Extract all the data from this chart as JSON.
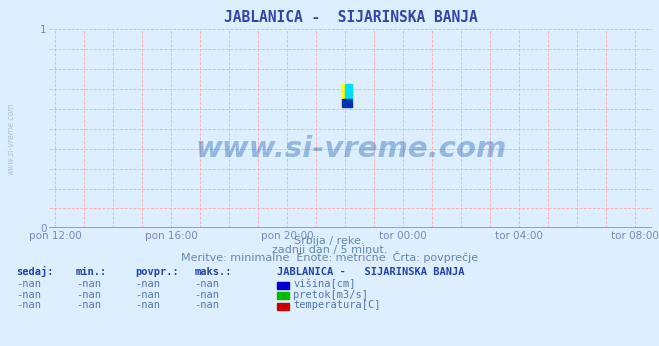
{
  "title": "JABLANICA -  SIJARINSKA BANJA",
  "title_color": "#3344aa",
  "title_fontsize": 10.5,
  "bg_color": "#ddeeff",
  "plot_bg_color": "#ddeeff",
  "grid_color": "#ffaaaa",
  "grid_style": ":",
  "ylim": [
    0,
    1
  ],
  "yticks": [
    0,
    1
  ],
  "xtick_labels": [
    "pon 12:00",
    "pon 16:00",
    "pon 20:00",
    "tor 00:00",
    "tor 04:00",
    "tor 08:00"
  ],
  "xtick_positions": [
    0,
    1,
    2,
    3,
    4,
    5
  ],
  "tick_color": "#7788bb",
  "xlabel_color": "#5577aa",
  "watermark": "www.si-vreme.com",
  "watermark_color": "#1155aa",
  "watermark_alpha": 0.35,
  "side_text": "www.si-vreme.com",
  "side_text_color": "#7799bb",
  "subtitle_line1": "Srbija / reke.",
  "subtitle_line2": "zadnji dan / 5 minut.",
  "subtitle_line3": "Meritve: minimalne  Enote: metrične  Črta: povprečje",
  "subtitle_color": "#6688aa",
  "subtitle_fontsize": 8,
  "table_header": [
    "sedaj:",
    "min.:",
    "povpr.:",
    "maks.:",
    "JABLANICA -   SIJARINSKA BANJA"
  ],
  "table_rows": [
    [
      "-nan",
      "-nan",
      "-nan",
      "-nan",
      "višina[cm]",
      "#0000cc"
    ],
    [
      "-nan",
      "-nan",
      "-nan",
      "-nan",
      "pretok[m3/s]",
      "#00bb00"
    ],
    [
      "-nan",
      "-nan",
      "-nan",
      "-nan",
      "temperatura[C]",
      "#cc0000"
    ]
  ],
  "table_color": "#5577aa",
  "table_header_color": "#2244aa",
  "spine_color": "#6666cc",
  "arrow_color": "#cc2222",
  "axis_line_color": "#8888cc"
}
